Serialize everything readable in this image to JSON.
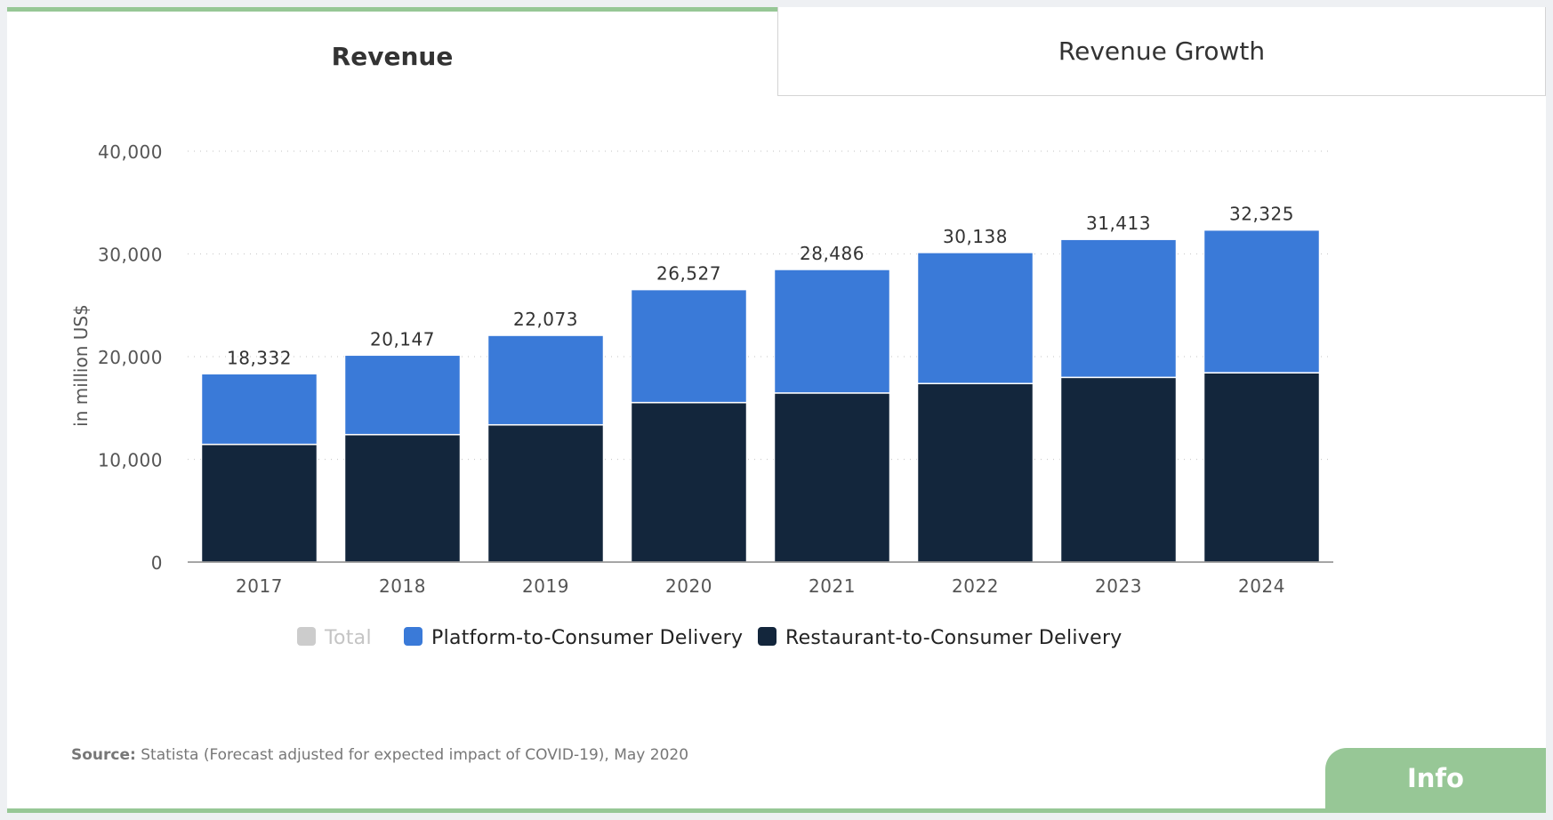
{
  "tabs": [
    {
      "label": "Revenue",
      "active": true
    },
    {
      "label": "Revenue Growth",
      "active": false
    }
  ],
  "source": {
    "prefix": "Source:",
    "text": "Statista (Forecast adjusted for expected impact of COVID-19), May 2020"
  },
  "info_label": "Info",
  "colors": {
    "platform": "#3a7ad8",
    "restaurant": "#13263c",
    "total_disabled": "#cccccc",
    "accent": "#97c796"
  },
  "chart_data": {
    "type": "bar",
    "stacked": true,
    "categories": [
      "2017",
      "2018",
      "2019",
      "2020",
      "2021",
      "2022",
      "2023",
      "2024"
    ],
    "series": [
      {
        "name": "Restaurant-to-Consumer Delivery",
        "values": [
          11460,
          12410,
          13360,
          15530,
          16460,
          17380,
          17980,
          18430
        ]
      },
      {
        "name": "Platform-to-Consumer Delivery",
        "values": [
          6872,
          7737,
          8713,
          10997,
          12026,
          12758,
          13433,
          13895
        ]
      }
    ],
    "totals": [
      "18,332",
      "20,147",
      "22,073",
      "26,527",
      "28,486",
      "30,138",
      "31,413",
      "32,325"
    ],
    "total_values": [
      18332,
      20147,
      22073,
      26527,
      28486,
      30138,
      31413,
      32325
    ],
    "legend": [
      {
        "name": "Total",
        "hidden": true
      },
      {
        "name": "Platform-to-Consumer Delivery",
        "hidden": false
      },
      {
        "name": "Restaurant-to-Consumer Delivery",
        "hidden": false
      }
    ],
    "ylabel": "in million US$",
    "yticks": [
      "0",
      "10,000",
      "20,000",
      "30,000",
      "40,000"
    ],
    "ytick_values": [
      0,
      10000,
      20000,
      30000,
      40000
    ],
    "ylim": [
      0,
      40000
    ],
    "grid": true,
    "legend_position": "bottom"
  }
}
